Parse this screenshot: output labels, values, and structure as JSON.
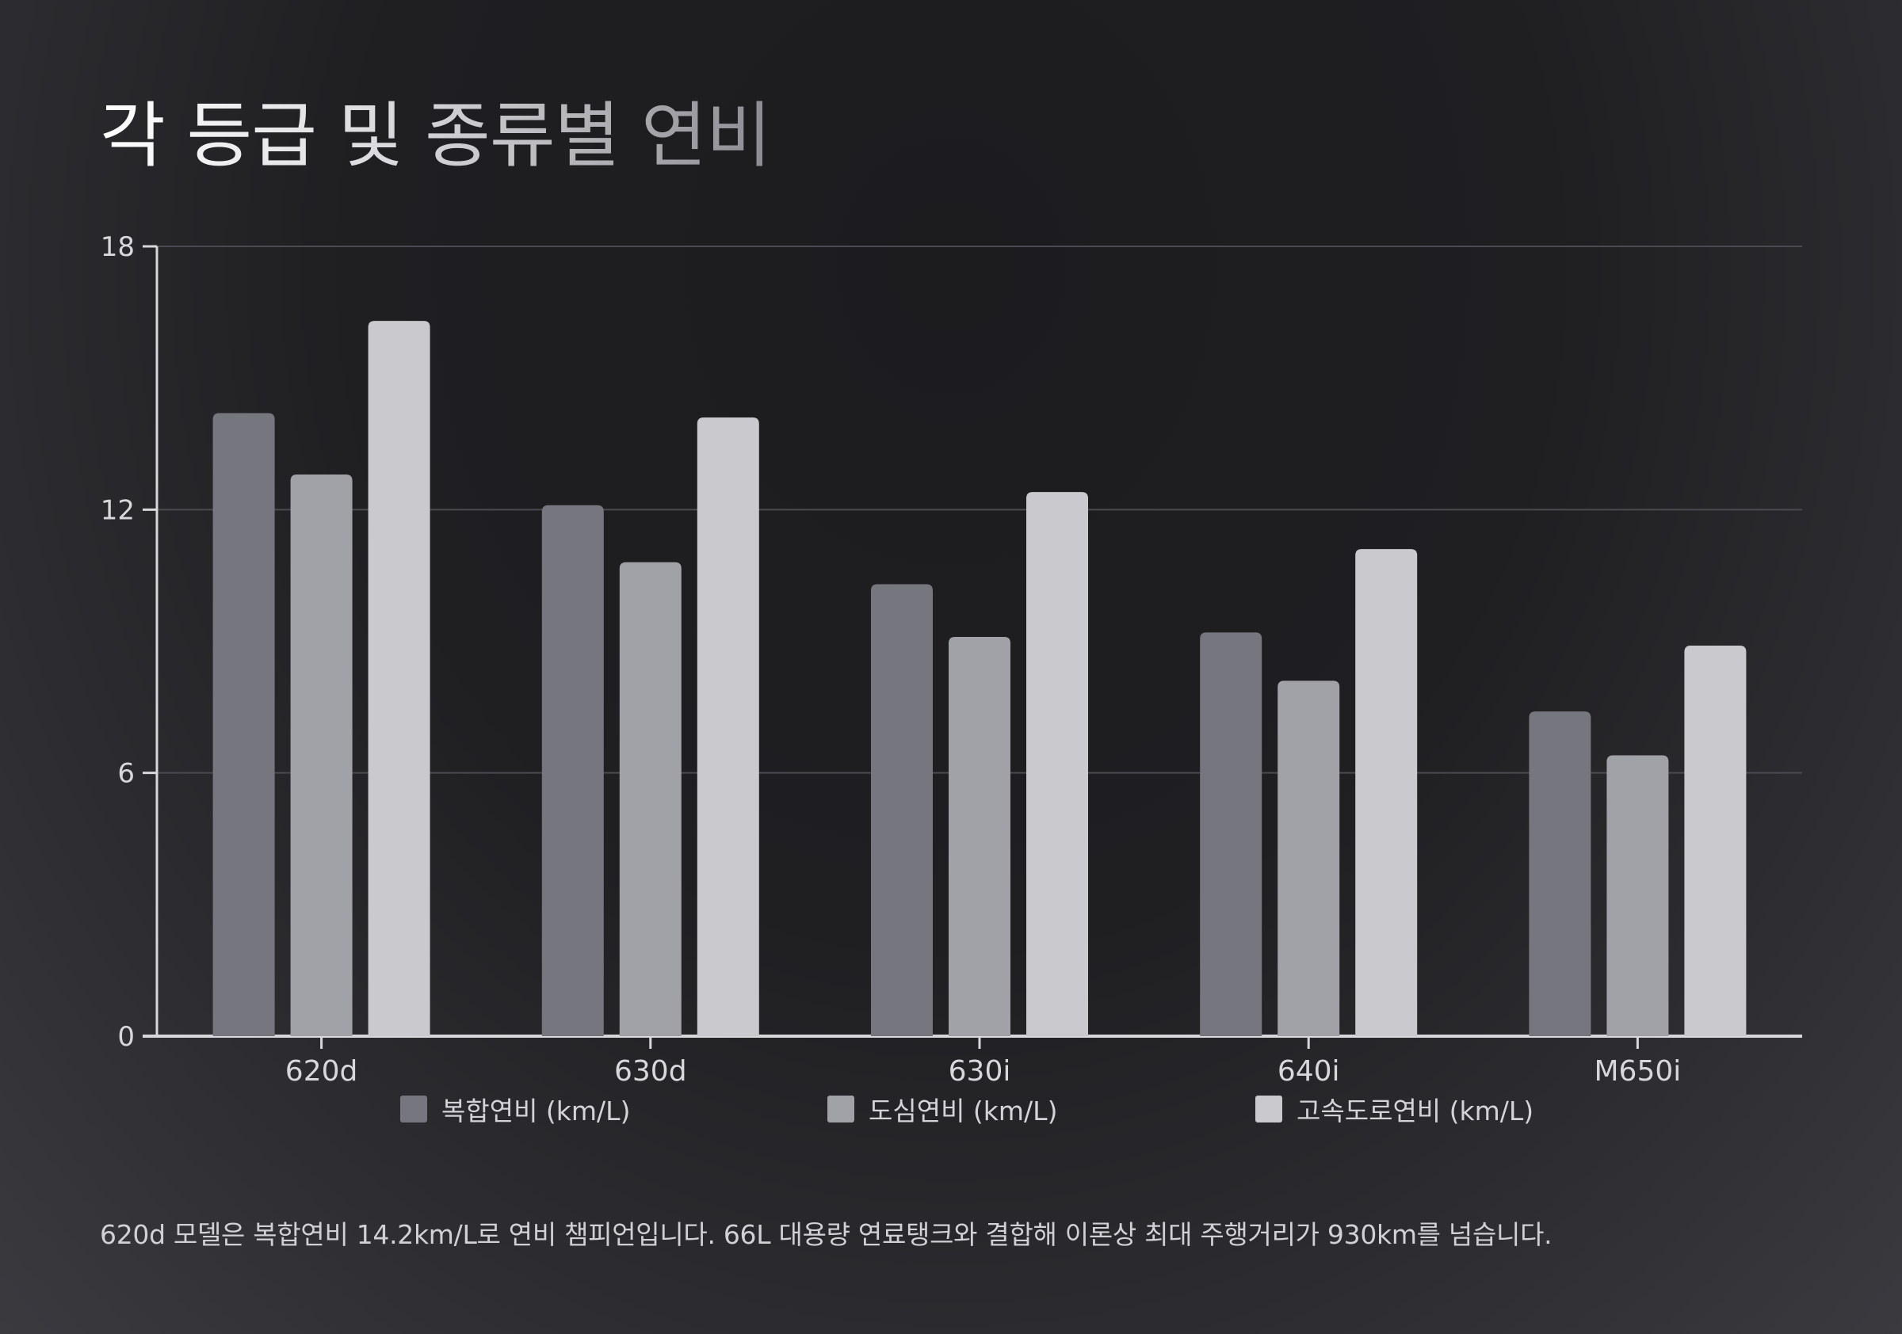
{
  "title": "각 등급 및 종류별 연비",
  "footnote": "620d 모델은 복합연비 14.2km/L로 연비 챔피언입니다. 66L 대용량 연료탱크와 결합해 이론상 최대 주행거리가 930km를 넘습니다.",
  "chart_data": {
    "type": "bar",
    "categories": [
      "620d",
      "630d",
      "630i",
      "640i",
      "M650i"
    ],
    "series": [
      {
        "name": "복합연비 (km/L)",
        "values": [
          14.2,
          12.1,
          10.3,
          9.2,
          7.4
        ],
        "color": "#76767f"
      },
      {
        "name": "도심연비 (km/L)",
        "values": [
          12.8,
          10.8,
          9.1,
          8.1,
          6.4
        ],
        "color": "#a1a2a7"
      },
      {
        "name": "고속도로연비 (km/L)",
        "values": [
          16.3,
          14.1,
          12.4,
          11.1,
          8.9
        ],
        "color": "#cacace"
      }
    ],
    "yticks": [
      0,
      6,
      12,
      18
    ],
    "ylim": [
      0,
      18
    ],
    "grid": true,
    "legend": "bottom"
  }
}
